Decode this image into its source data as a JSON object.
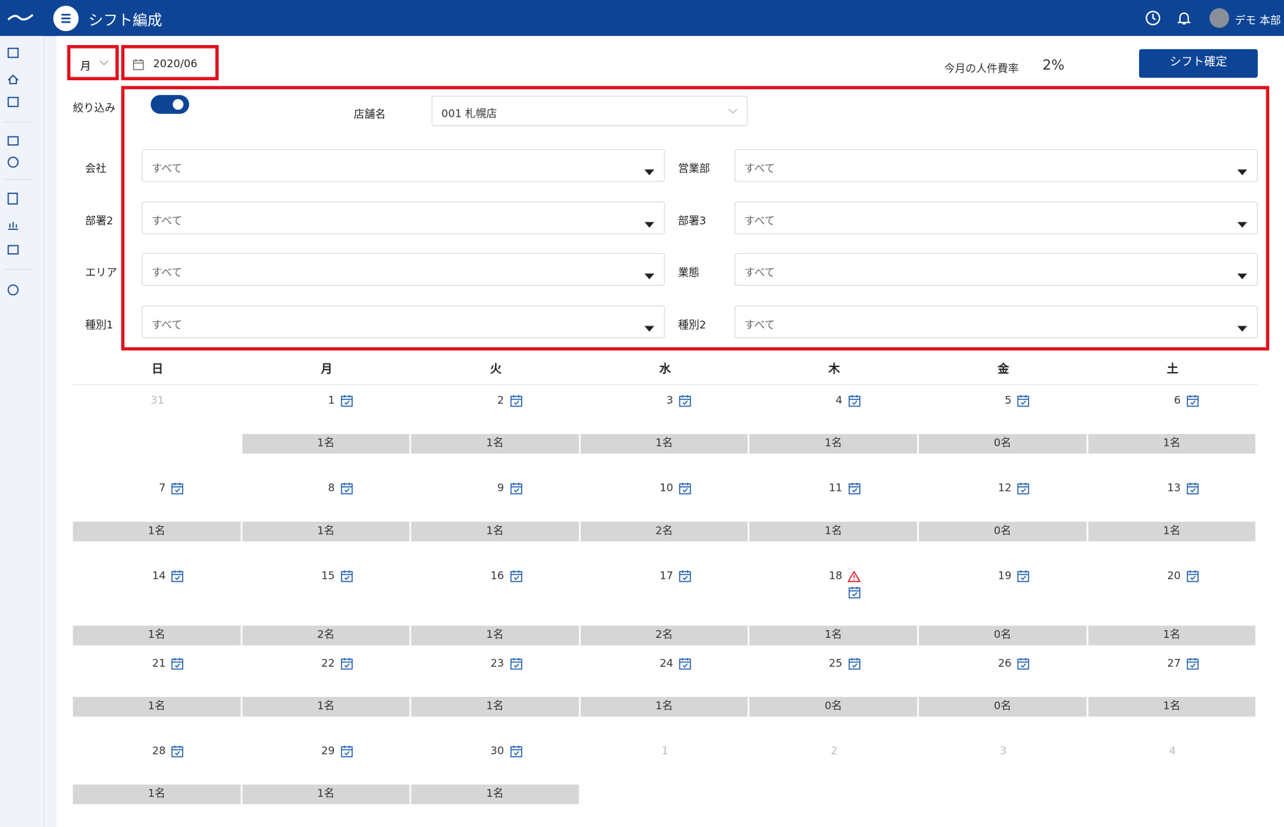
{
  "header": {
    "title": "シフト編成",
    "user": "デモ 本部"
  },
  "toolbar": {
    "view": "月",
    "date": "2020/06",
    "cost_label": "今月の人件費率",
    "cost_value": "2%",
    "confirm": "シフト確定"
  },
  "filter": {
    "label": "絞り込み",
    "store_label": "店舗名",
    "store_value": "001 札幌店",
    "fields": [
      {
        "label": "会社",
        "value": "すべて"
      },
      {
        "label": "営業部",
        "value": "すべて"
      },
      {
        "label": "部署2",
        "value": "すべて"
      },
      {
        "label": "部署3",
        "value": "すべて"
      },
      {
        "label": "エリア",
        "value": "すべて"
      },
      {
        "label": "業態",
        "value": "すべて"
      },
      {
        "label": "種別1",
        "value": "すべて"
      },
      {
        "label": "種別2",
        "value": "すべて"
      }
    ]
  },
  "calendar": {
    "weekdays": [
      "日",
      "月",
      "火",
      "水",
      "木",
      "金",
      "土"
    ],
    "weeks": [
      [
        {
          "day": "31",
          "muted": true
        },
        {
          "day": "1",
          "count": "1名"
        },
        {
          "day": "2",
          "count": "1名"
        },
        {
          "day": "3",
          "count": "1名"
        },
        {
          "day": "4",
          "count": "1名"
        },
        {
          "day": "5",
          "count": "0名"
        },
        {
          "day": "6",
          "count": "1名"
        }
      ],
      [
        {
          "day": "7",
          "count": "1名"
        },
        {
          "day": "8",
          "count": "1名"
        },
        {
          "day": "9",
          "count": "1名"
        },
        {
          "day": "10",
          "count": "2名"
        },
        {
          "day": "11",
          "count": "1名"
        },
        {
          "day": "12",
          "count": "0名"
        },
        {
          "day": "13",
          "count": "1名"
        }
      ],
      [
        {
          "day": "14",
          "count": "1名"
        },
        {
          "day": "15",
          "count": "2名"
        },
        {
          "day": "16",
          "count": "1名"
        },
        {
          "day": "17",
          "count": "2名"
        },
        {
          "day": "18",
          "count": "1名",
          "warning": true
        },
        {
          "day": "19",
          "count": "0名"
        },
        {
          "day": "20",
          "count": "1名"
        }
      ],
      [
        {
          "day": "21",
          "count": "1名"
        },
        {
          "day": "22",
          "count": "1名"
        },
        {
          "day": "23",
          "count": "1名"
        },
        {
          "day": "24",
          "count": "1名"
        },
        {
          "day": "25",
          "count": "0名"
        },
        {
          "day": "26",
          "count": "0名"
        },
        {
          "day": "27",
          "count": "1名"
        }
      ],
      [
        {
          "day": "28",
          "count": "1名"
        },
        {
          "day": "29",
          "count": "1名"
        },
        {
          "day": "30",
          "count": "1名"
        },
        {
          "day": "1",
          "muted": true
        },
        {
          "day": "2",
          "muted": true
        },
        {
          "day": "3",
          "muted": true
        },
        {
          "day": "4",
          "muted": true
        }
      ]
    ]
  }
}
